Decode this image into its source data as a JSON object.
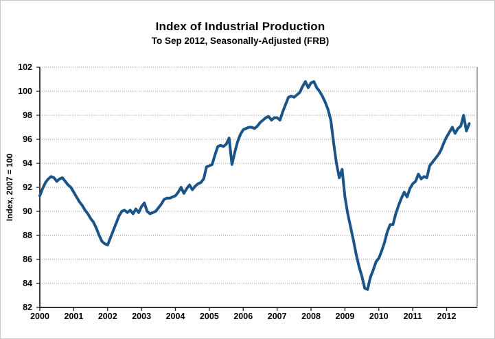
{
  "chart_data": {
    "type": "line",
    "title": "Index of Industrial Production",
    "subtitle": "To Sep 2012, Seasonally-Adjusted (FRB)",
    "ylabel": "Index, 2007 = 100",
    "xlabel": "",
    "ylim": [
      82,
      102
    ],
    "ytick_step": 2,
    "xlim": [
      2000,
      2012.9
    ],
    "xticks": [
      2000,
      2001,
      2002,
      2003,
      2004,
      2005,
      2006,
      2007,
      2008,
      2009,
      2010,
      2011,
      2012
    ],
    "grid": "horizontal-dotted",
    "legend_position": "none",
    "line_color": "#1A5488",
    "line_width": 4,
    "axis_color": "#1a1a1a",
    "grid_color": "#8c8c8c",
    "border_color": "#808080",
    "series": [
      {
        "name": "Industrial Production Index (FRB), 2007 = 100",
        "frequency": "monthly",
        "start_year": 2000,
        "start_month": 1,
        "end_label": "Sep 2012",
        "values": [
          91.3,
          91.9,
          92.4,
          92.7,
          92.9,
          92.8,
          92.5,
          92.7,
          92.8,
          92.5,
          92.2,
          92.0,
          91.6,
          91.2,
          90.8,
          90.5,
          90.1,
          89.8,
          89.4,
          89.1,
          88.6,
          88.0,
          87.5,
          87.3,
          87.2,
          87.8,
          88.4,
          89.0,
          89.6,
          90.0,
          90.1,
          89.9,
          90.1,
          89.8,
          90.2,
          89.9,
          90.4,
          90.7,
          90.0,
          89.8,
          89.9,
          90.0,
          90.3,
          90.6,
          91.0,
          91.1,
          91.1,
          91.2,
          91.3,
          91.6,
          92.0,
          91.5,
          91.9,
          92.2,
          91.8,
          92.1,
          92.3,
          92.4,
          92.7,
          93.7,
          93.8,
          93.9,
          94.7,
          95.4,
          95.5,
          95.4,
          95.6,
          96.1,
          93.9,
          94.9,
          95.8,
          96.4,
          96.8,
          96.9,
          97.0,
          97.0,
          96.9,
          97.1,
          97.4,
          97.6,
          97.8,
          97.9,
          97.6,
          97.8,
          97.8,
          97.6,
          98.3,
          98.9,
          99.5,
          99.6,
          99.5,
          99.7,
          99.9,
          100.4,
          100.8,
          100.3,
          100.7,
          100.8,
          100.3,
          100.0,
          99.6,
          99.1,
          98.5,
          97.6,
          95.7,
          94.0,
          92.8,
          93.5,
          91.2,
          89.8,
          88.7,
          87.6,
          86.4,
          85.4,
          84.6,
          83.6,
          83.5,
          84.5,
          85.1,
          85.8,
          86.1,
          86.7,
          87.4,
          88.3,
          88.9,
          88.9,
          89.8,
          90.5,
          91.1,
          91.6,
          91.2,
          91.9,
          92.3,
          92.5,
          93.1,
          92.7,
          92.9,
          92.8,
          93.8,
          94.1,
          94.4,
          94.7,
          95.1,
          95.7,
          96.2,
          96.6,
          97.0,
          96.5,
          96.9,
          97.1,
          98.0,
          96.7,
          97.3
        ]
      }
    ]
  }
}
